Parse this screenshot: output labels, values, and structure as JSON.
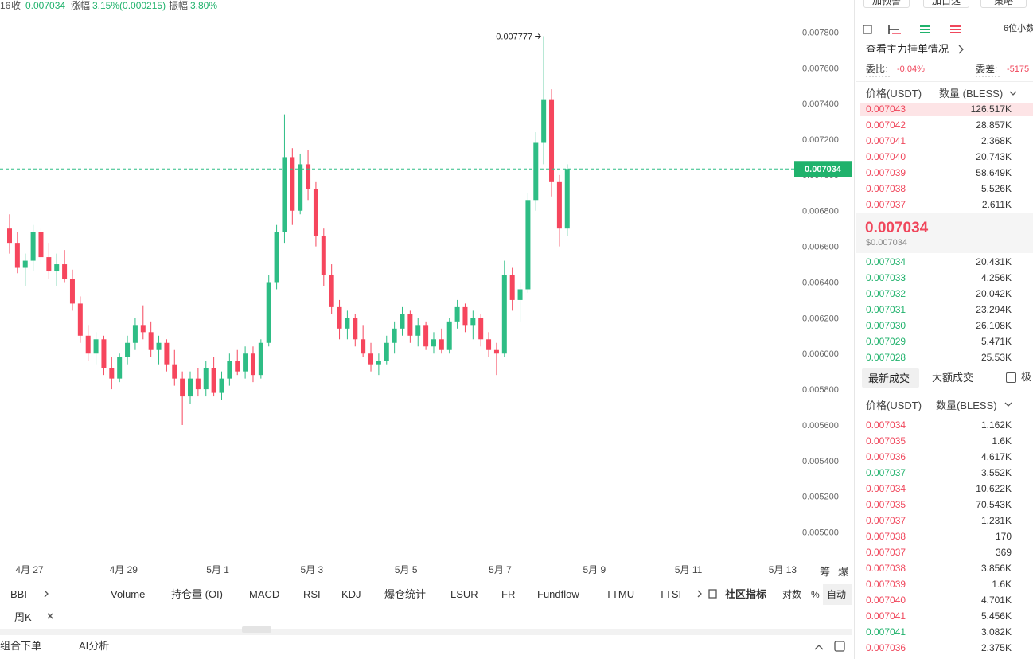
{
  "header": {
    "time": "16",
    "close_label": "收",
    "close": "0.007034",
    "change_label": "涨幅",
    "change": "3.15%(0.000215)",
    "amp_label": "振幅",
    "amp": "3.80%"
  },
  "chart": {
    "type": "candlestick",
    "up_color": "#2ebd85",
    "down_color": "#f6465d",
    "ylim": [
      0.00486,
      0.00798
    ],
    "yticks": [
      {
        "value": 0.0078,
        "label": "0.007800"
      },
      {
        "value": 0.0076,
        "label": "0.007600"
      },
      {
        "value": 0.0074,
        "label": "0.007400"
      },
      {
        "value": 0.0072,
        "label": "0.007200"
      },
      {
        "value": 0.007,
        "label": "0.007000"
      },
      {
        "value": 0.0068,
        "label": "0.006800"
      },
      {
        "value": 0.0066,
        "label": "0.006600"
      },
      {
        "value": 0.0064,
        "label": "0.006400"
      },
      {
        "value": 0.0062,
        "label": "0.006200"
      },
      {
        "value": 0.006,
        "label": "0.006000"
      },
      {
        "value": 0.0058,
        "label": "0.005800"
      },
      {
        "value": 0.0056,
        "label": "0.005600"
      },
      {
        "value": 0.0054,
        "label": "0.005400"
      },
      {
        "value": 0.0052,
        "label": "0.005200"
      },
      {
        "value": 0.005,
        "label": "0.005000"
      }
    ],
    "x_labels": [
      "4月 27",
      "4月 29",
      "5月 1",
      "5月 3",
      "5月 5",
      "5月 7",
      "5月 9",
      "5月 11",
      "5月 13"
    ],
    "corner_buttons": [
      "筹",
      "爆"
    ],
    "candles": [
      [
        0.0067,
        0.00678,
        0.00656,
        0.00662
      ],
      [
        0.00662,
        0.00668,
        0.00645,
        0.00648
      ],
      [
        0.00648,
        0.00656,
        0.00638,
        0.00652
      ],
      [
        0.00652,
        0.00672,
        0.00646,
        0.00668
      ],
      [
        0.00668,
        0.0067,
        0.0065,
        0.00654
      ],
      [
        0.00654,
        0.00662,
        0.00642,
        0.00646
      ],
      [
        0.00646,
        0.00656,
        0.00638,
        0.0065
      ],
      [
        0.0065,
        0.00658,
        0.0064,
        0.00642
      ],
      [
        0.00642,
        0.00647,
        0.00624,
        0.00628
      ],
      [
        0.00628,
        0.00632,
        0.00606,
        0.0061
      ],
      [
        0.0061,
        0.00616,
        0.00596,
        0.006
      ],
      [
        0.006,
        0.00612,
        0.00594,
        0.00608
      ],
      [
        0.00608,
        0.0061,
        0.00588,
        0.00592
      ],
      [
        0.00592,
        0.00598,
        0.0058,
        0.00586
      ],
      [
        0.00586,
        0.006,
        0.00584,
        0.00598
      ],
      [
        0.00598,
        0.0061,
        0.00594,
        0.00606
      ],
      [
        0.00606,
        0.0062,
        0.00602,
        0.00616
      ],
      [
        0.00616,
        0.00627,
        0.00608,
        0.00612
      ],
      [
        0.00612,
        0.00618,
        0.00598,
        0.00602
      ],
      [
        0.00602,
        0.0061,
        0.00594,
        0.00606
      ],
      [
        0.00606,
        0.00608,
        0.0059,
        0.00594
      ],
      [
        0.00594,
        0.00602,
        0.00582,
        0.00586
      ],
      [
        0.00586,
        0.0059,
        0.0056,
        0.00576
      ],
      [
        0.00576,
        0.0059,
        0.00572,
        0.00586
      ],
      [
        0.00586,
        0.00592,
        0.00576,
        0.0058
      ],
      [
        0.0058,
        0.00596,
        0.00576,
        0.00592
      ],
      [
        0.00592,
        0.00598,
        0.00576,
        0.00578
      ],
      [
        0.00578,
        0.0059,
        0.00574,
        0.00586
      ],
      [
        0.00586,
        0.006,
        0.00582,
        0.00596
      ],
      [
        0.00596,
        0.00602,
        0.00588,
        0.0059
      ],
      [
        0.0059,
        0.00604,
        0.00586,
        0.006
      ],
      [
        0.006,
        0.00604,
        0.00584,
        0.00588
      ],
      [
        0.00588,
        0.00608,
        0.00586,
        0.00606
      ],
      [
        0.00606,
        0.00644,
        0.00604,
        0.0064
      ],
      [
        0.0064,
        0.00672,
        0.00636,
        0.00668
      ],
      [
        0.00668,
        0.00734,
        0.00662,
        0.0071
      ],
      [
        0.0071,
        0.00715,
        0.00672,
        0.0068
      ],
      [
        0.0068,
        0.00712,
        0.00678,
        0.00706
      ],
      [
        0.00706,
        0.00714,
        0.00686,
        0.00692
      ],
      [
        0.00692,
        0.00696,
        0.0066,
        0.00666
      ],
      [
        0.00666,
        0.0067,
        0.00638,
        0.00644
      ],
      [
        0.00644,
        0.0065,
        0.00622,
        0.00626
      ],
      [
        0.00626,
        0.0063,
        0.00608,
        0.00614
      ],
      [
        0.00614,
        0.00624,
        0.00608,
        0.0062
      ],
      [
        0.0062,
        0.00622,
        0.00604,
        0.00608
      ],
      [
        0.00608,
        0.00616,
        0.00598,
        0.006
      ],
      [
        0.006,
        0.00606,
        0.0059,
        0.00594
      ],
      [
        0.00594,
        0.006,
        0.00588,
        0.00596
      ],
      [
        0.00596,
        0.0061,
        0.00594,
        0.00606
      ],
      [
        0.00606,
        0.00618,
        0.006,
        0.00614
      ],
      [
        0.00614,
        0.00626,
        0.0061,
        0.00622
      ],
      [
        0.00622,
        0.00624,
        0.00606,
        0.0061
      ],
      [
        0.0061,
        0.0062,
        0.00604,
        0.00616
      ],
      [
        0.00616,
        0.00618,
        0.00602,
        0.00604
      ],
      [
        0.00604,
        0.00612,
        0.006,
        0.00608
      ],
      [
        0.00608,
        0.00614,
        0.006,
        0.00602
      ],
      [
        0.00602,
        0.0062,
        0.006,
        0.00618
      ],
      [
        0.00618,
        0.0063,
        0.00614,
        0.00626
      ],
      [
        0.00626,
        0.00628,
        0.00612,
        0.00616
      ],
      [
        0.00616,
        0.00624,
        0.00608,
        0.0062
      ],
      [
        0.0062,
        0.00622,
        0.00604,
        0.00608
      ],
      [
        0.00608,
        0.00612,
        0.00598,
        0.00602
      ],
      [
        0.00602,
        0.00606,
        0.00588,
        0.006
      ],
      [
        0.006,
        0.00652,
        0.00598,
        0.00644
      ],
      [
        0.00644,
        0.00648,
        0.00624,
        0.0063
      ],
      [
        0.0063,
        0.0064,
        0.00618,
        0.00636
      ],
      [
        0.00636,
        0.0069,
        0.00634,
        0.00686
      ],
      [
        0.00686,
        0.00724,
        0.0068,
        0.00718
      ],
      [
        0.00718,
        0.007777,
        0.00706,
        0.00742
      ],
      [
        0.00742,
        0.00748,
        0.00688,
        0.00696
      ],
      [
        0.00696,
        0.007,
        0.0066,
        0.0067
      ],
      [
        0.0067,
        0.00706,
        0.00666,
        0.007034
      ]
    ]
  },
  "toolbar": {
    "left": "BBI",
    "indicators": [
      "Volume",
      "持仓量 (OI)",
      "MACD",
      "RSI",
      "KDJ",
      "爆仓统计",
      "LSUR",
      "FR",
      "Fundflow",
      "TTMU",
      "TTSI"
    ],
    "community": "社区指标",
    "log": "对数",
    "percent": "%",
    "auto": "自动",
    "interval": "周K"
  },
  "bottom": {
    "order": "组合下单",
    "ai": "AI分析"
  },
  "panel": {
    "buttons": [
      "加预警",
      "加自选",
      "策略"
    ],
    "decimals": "6位小数",
    "depth_link": "查看主力挂单情况",
    "ratio_label": "委比:",
    "ratio": "-0.04%",
    "diff_label": "委差:",
    "diff": "-5175",
    "col_price": "价格(USDT)",
    "col_qty": "数量 (BLESS)",
    "asks": [
      [
        "0.007043",
        "126.517K"
      ],
      [
        "0.007042",
        "28.857K"
      ],
      [
        "0.007041",
        "2.368K"
      ],
      [
        "0.007040",
        "20.743K"
      ],
      [
        "0.007039",
        "58.649K"
      ],
      [
        "0.007038",
        "5.526K"
      ],
      [
        "0.007037",
        "2.611K"
      ]
    ],
    "mid": "0.007034",
    "mid_usd": "$0.007034",
    "bids": [
      [
        "0.007034",
        "20.431K"
      ],
      [
        "0.007033",
        "4.256K"
      ],
      [
        "0.007032",
        "20.042K"
      ],
      [
        "0.007031",
        "23.294K"
      ],
      [
        "0.007030",
        "26.108K"
      ],
      [
        "0.007029",
        "5.471K"
      ],
      [
        "0.007028",
        "25.53K"
      ]
    ]
  },
  "trades": {
    "tabs": [
      "最新成交",
      "大额成交"
    ],
    "filter": "极",
    "col_price": "价格(USDT)",
    "col_qty": "数量(BLESS)",
    "rows": [
      {
        "price": "0.007034",
        "qty": "1.162K",
        "side": "sell"
      },
      {
        "price": "0.007035",
        "qty": "1.6K",
        "side": "sell"
      },
      {
        "price": "0.007036",
        "qty": "4.617K",
        "side": "sell"
      },
      {
        "price": "0.007037",
        "qty": "3.552K",
        "side": "buy"
      },
      {
        "price": "0.007034",
        "qty": "10.622K",
        "side": "sell"
      },
      {
        "price": "0.007035",
        "qty": "70.543K",
        "side": "sell"
      },
      {
        "price": "0.007037",
        "qty": "1.231K",
        "side": "sell"
      },
      {
        "price": "0.007038",
        "qty": "170",
        "side": "sell"
      },
      {
        "price": "0.007037",
        "qty": "369",
        "side": "sell"
      },
      {
        "price": "0.007038",
        "qty": "3.856K",
        "side": "sell"
      },
      {
        "price": "0.007039",
        "qty": "1.6K",
        "side": "sell"
      },
      {
        "price": "0.007040",
        "qty": "4.701K",
        "side": "sell"
      },
      {
        "price": "0.007041",
        "qty": "5.456K",
        "side": "sell"
      },
      {
        "price": "0.007041",
        "qty": "3.082K",
        "side": "buy"
      },
      {
        "price": "0.007036",
        "qty": "2.375K",
        "side": "sell"
      }
    ]
  }
}
